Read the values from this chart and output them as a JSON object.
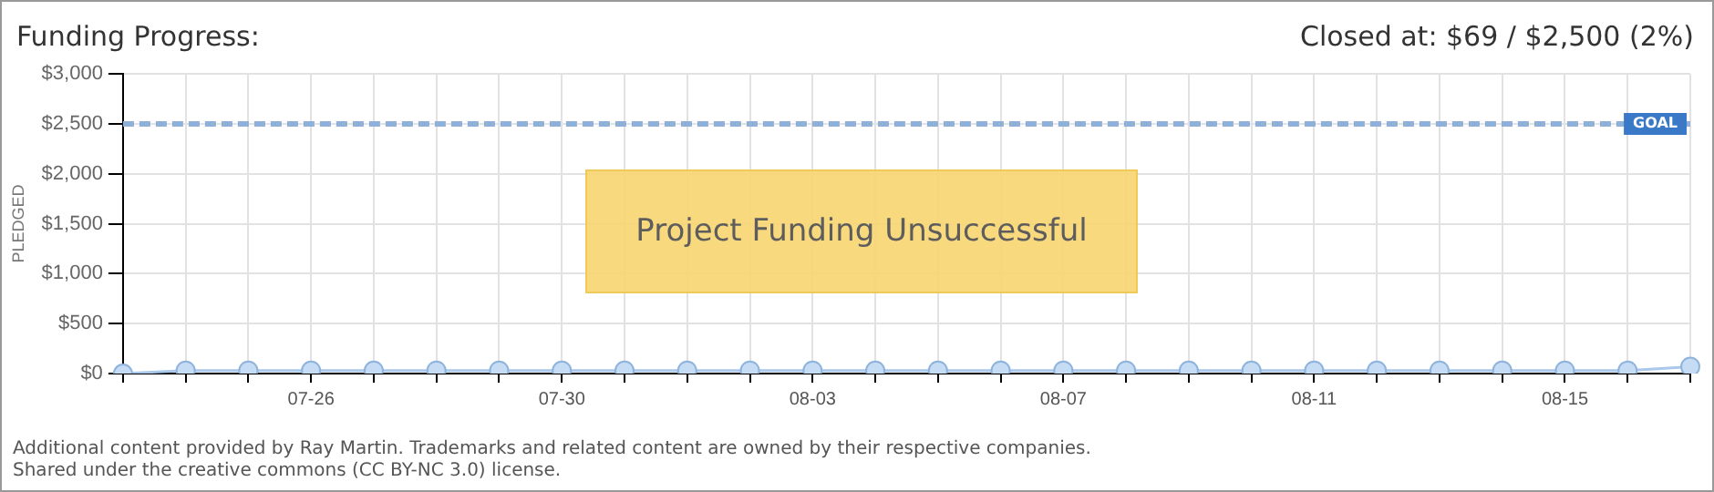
{
  "chart_data": {
    "type": "line",
    "title": "Funding Progress:",
    "subtitle": "Closed at: $69 / $2,500 (2%)",
    "ylabel": "PLEDGED",
    "categories": [
      null,
      null,
      null,
      "07-26",
      null,
      null,
      null,
      "07-30",
      null,
      null,
      null,
      "08-03",
      null,
      null,
      null,
      "08-07",
      null,
      null,
      null,
      "08-11",
      null,
      null,
      null,
      "08-15",
      null,
      null
    ],
    "series": [
      {
        "color": "#a9c8ec",
        "values": [
          0,
          30,
          30,
          30,
          30,
          30,
          30,
          30,
          30,
          30,
          30,
          30,
          30,
          30,
          30,
          30,
          30,
          30,
          30,
          30,
          30,
          30,
          30,
          30,
          30,
          69
        ]
      }
    ],
    "ylim": [
      0,
      3000
    ],
    "yticks": [
      {
        "value": 0,
        "label": "$0"
      },
      {
        "value": 500,
        "label": "$500"
      },
      {
        "value": 1000,
        "label": "$1,000"
      },
      {
        "value": 1500,
        "label": "$1,500"
      },
      {
        "value": 2000,
        "label": "$2,000"
      },
      {
        "value": 2500,
        "label": "$2,500"
      },
      {
        "value": 3000,
        "label": "$3,000"
      }
    ],
    "grid": true,
    "legend": false,
    "marker": "circle",
    "line_style": "solid",
    "ref_lines": [
      {
        "axis": "y",
        "value": 2500,
        "label": "GOAL",
        "color": "#8fb0d8",
        "line_style": "dashed"
      }
    ],
    "annotations": [
      "Project Funding Unsuccessful",
      "Additional content provided by Ray Martin. Trademarks and related content are owned by their respective companies.",
      "Shared under the creative commons (CC BY-NC 3.0) license."
    ]
  }
}
